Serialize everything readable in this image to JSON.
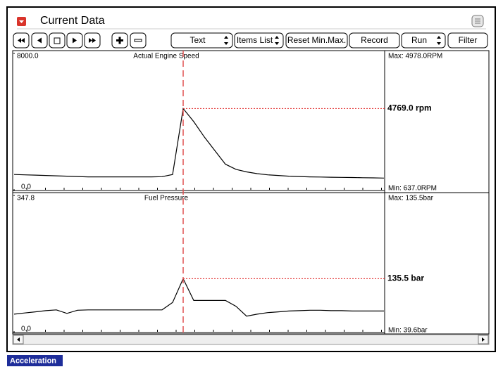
{
  "window": {
    "title": "Current Data"
  },
  "toolbar": {
    "buttons": [
      "Text",
      "Items List",
      "Reset Min.Max.",
      "Record",
      "Run",
      "Filter"
    ]
  },
  "chart_data": [
    {
      "type": "line",
      "title": "Actual Engine Speed",
      "color": "#000000",
      "ylim": [
        0,
        8000
      ],
      "yticks": [
        {
          "value": 0,
          "label": "0.0"
        },
        {
          "value": 8000,
          "label": "8000.0"
        }
      ],
      "max_label": "Max: 4978.0RPM",
      "min_label": "Min: 637.0RPM",
      "readout": "4769.0 rpm",
      "values": [
        900,
        880,
        860,
        840,
        820,
        800,
        780,
        760,
        760,
        760,
        760,
        760,
        760,
        760,
        770,
        900,
        4769,
        4000,
        3100,
        2300,
        1500,
        1200,
        1050,
        950,
        880,
        840,
        800,
        780,
        760,
        750,
        740,
        730,
        720,
        710,
        700,
        690
      ]
    },
    {
      "type": "line",
      "title": "Fuel Pressure",
      "color": "#000000",
      "ylim": [
        0,
        347.8
      ],
      "yticks": [
        {
          "value": 0,
          "label": "0.0"
        },
        347.8
      ],
      "max_label": "Max: 135.5bar",
      "min_label": "Min:  39.6bar",
      "readout": "135.5 bar",
      "values": [
        45,
        48,
        51,
        54,
        56,
        47,
        55,
        56,
        56,
        56,
        56,
        56,
        56,
        56,
        56,
        75,
        135.5,
        80,
        80,
        80,
        80,
        65,
        40,
        45,
        49,
        51,
        53,
        54,
        55,
        55,
        54,
        54,
        53,
        53,
        53,
        53
      ]
    }
  ],
  "status": "Acceleration"
}
